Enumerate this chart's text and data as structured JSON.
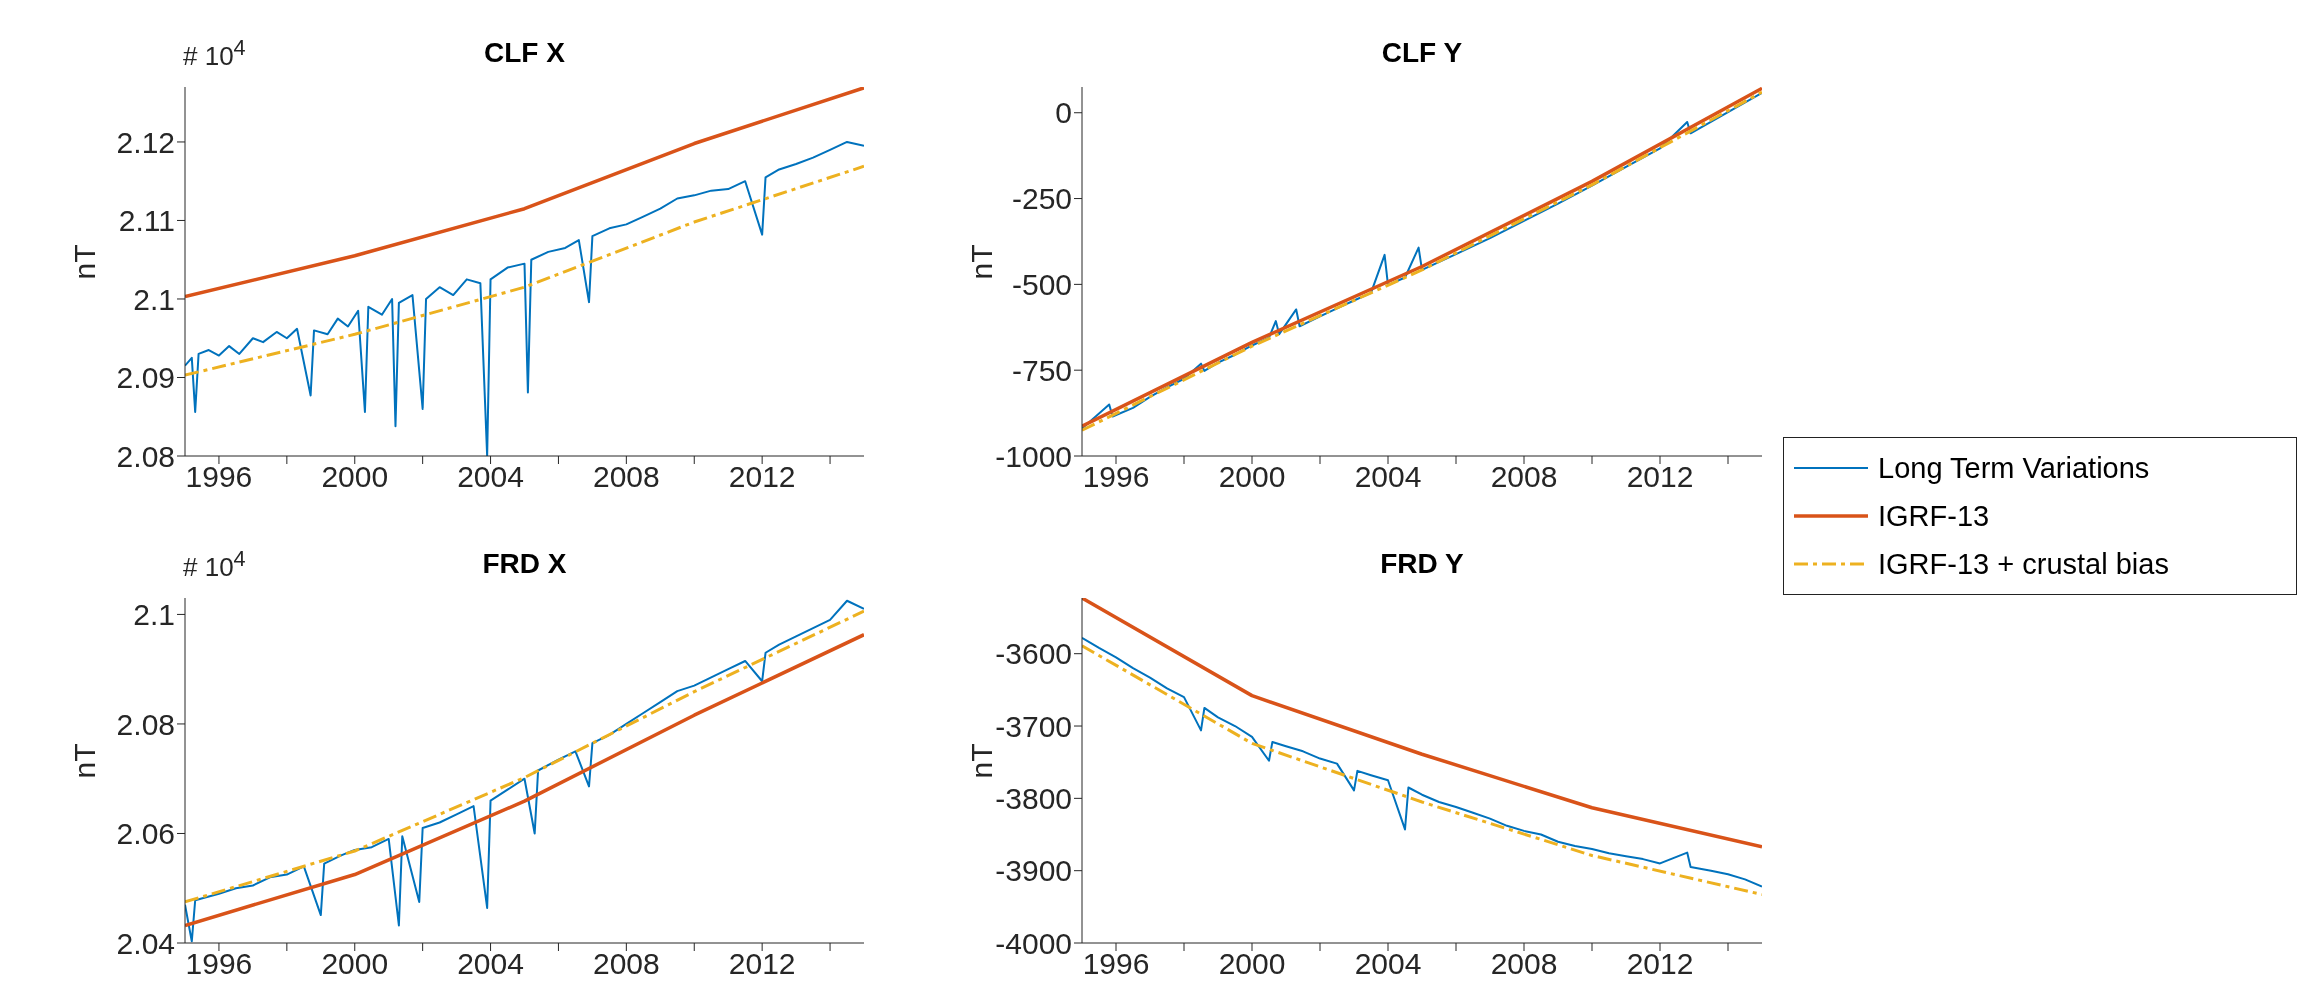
{
  "chart_data": [
    {
      "type": "line",
      "title": "CLF X",
      "ylabel": "nT",
      "annotations": [
        "# 10$^{4}$"
      ],
      "xlim": [
        1995,
        2015
      ],
      "xticks": [
        1996,
        {
          "value": 1998,
          "label": null
        },
        2000,
        {
          "value": 2002,
          "label": null
        },
        2004,
        {
          "value": 2006,
          "label": null
        },
        2008,
        {
          "value": 2010,
          "label": null
        },
        2012,
        {
          "value": 2014,
          "label": null
        }
      ],
      "ylim": [
        2.08,
        2.127
      ],
      "yticks": [
        2.08,
        2.09,
        2.1,
        2.11,
        2.12
      ],
      "marker": "none",
      "series": [
        {
          "color": "#0072bd",
          "line_style": "solid",
          "x": [
            1995.0,
            1995.2,
            1995.3,
            1995.4,
            1995.7,
            1996.0,
            1996.3,
            1996.6,
            1997.0,
            1997.3,
            1997.7,
            1998.0,
            1998.3,
            1998.7,
            1998.8,
            1999.2,
            1999.5,
            1999.8,
            2000.1,
            2000.3,
            2000.4,
            2000.8,
            2001.1,
            2001.2,
            2001.3,
            2001.7,
            2002.0,
            2002.1,
            2002.5,
            2002.9,
            2003.3,
            2003.7,
            2003.9,
            2004.0,
            2004.5,
            2005.0,
            2005.1,
            2005.2,
            2005.7,
            2006.2,
            2006.6,
            2006.9,
            2007.0,
            2007.5,
            2008.0,
            2008.5,
            2009.0,
            2009.5,
            2010.0,
            2010.5,
            2011.0,
            2011.5,
            2012.0,
            2012.1,
            2012.5,
            2013.0,
            2013.5,
            2014.0,
            2014.5,
            2015.0
          ],
          "values": [
            2.0915,
            2.0925,
            2.0856,
            2.093,
            2.0935,
            2.0928,
            2.094,
            2.093,
            2.095,
            2.0945,
            2.0958,
            2.095,
            2.0962,
            2.0877,
            2.096,
            2.0955,
            2.0975,
            2.0965,
            2.0985,
            2.0856,
            2.099,
            2.098,
            2.1,
            2.0838,
            2.0995,
            2.1005,
            2.086,
            2.1,
            2.1015,
            2.1005,
            2.1025,
            2.102,
            2.08,
            2.1025,
            2.104,
            2.1045,
            2.0881,
            2.105,
            2.106,
            2.1065,
            2.1075,
            2.0996,
            2.108,
            2.109,
            2.1095,
            2.1105,
            2.1115,
            2.1128,
            2.1132,
            2.1138,
            2.114,
            2.115,
            2.1082,
            2.1155,
            2.1165,
            2.1172,
            2.118,
            2.119,
            2.12,
            2.1195
          ]
        },
        {
          "color": "#d95319",
          "line_style": "solid",
          "x": [
            1995,
            2000,
            2005,
            2010,
            2015
          ],
          "values": [
            2.1003,
            2.1055,
            2.1115,
            2.1198,
            2.1269
          ]
        },
        {
          "color": "#edb120",
          "line_style": "dashed",
          "x": [
            1995,
            2000,
            2005,
            2010,
            2015
          ],
          "values": [
            2.0903,
            2.0955,
            2.1015,
            2.1098,
            2.1169
          ]
        }
      ]
    },
    {
      "type": "line",
      "title": "CLF Y",
      "ylabel": "nT",
      "xlim": [
        1995,
        2015
      ],
      "xticks": [
        1996,
        {
          "value": 1998,
          "label": null
        },
        2000,
        {
          "value": 2002,
          "label": null
        },
        2004,
        {
          "value": 2006,
          "label": null
        },
        2008,
        {
          "value": 2010,
          "label": null
        },
        2012,
        {
          "value": 2014,
          "label": null
        }
      ],
      "ylim": [
        -1000,
        75
      ],
      "yticks": [
        -1000,
        -750,
        -500,
        -250,
        0
      ],
      "marker": "none",
      "legend": "right",
      "series": [
        {
          "name": "Long Term Variations",
          "color": "#0072bd",
          "line_style": "solid",
          "x": [
            1995.0,
            1995.8,
            1995.9,
            1996.5,
            1997.0,
            1997.5,
            1998.0,
            1998.5,
            1998.6,
            1999.0,
            1999.5,
            2000.0,
            2000.5,
            2000.7,
            2000.8,
            2001.3,
            2001.4,
            2002.0,
            2002.5,
            2003.0,
            2003.5,
            2003.9,
            2004.0,
            2004.5,
            2004.9,
            2005.0,
            2006.0,
            2007.0,
            2008.0,
            2009.0,
            2010.0,
            2011.0,
            2012.0,
            2012.8,
            2012.9,
            2014.0,
            2015.0
          ],
          "values": [
            -920,
            -850,
            -885,
            -860,
            -828,
            -800,
            -775,
            -731,
            -752,
            -728,
            -705,
            -678,
            -655,
            -607,
            -645,
            -573,
            -622,
            -593,
            -570,
            -547,
            -525,
            -414,
            -502,
            -480,
            -393,
            -458,
            -412,
            -365,
            -315,
            -265,
            -212,
            -158,
            -104,
            -27,
            -60,
            2,
            58
          ]
        },
        {
          "name": "IGRF-13",
          "color": "#d95319",
          "line_style": "solid",
          "x": [
            1995,
            2000,
            2005,
            2010,
            2015
          ],
          "values": [
            -913,
            -669,
            -448,
            -200,
            71
          ]
        },
        {
          "name": "IGRF-13 + crustal bias",
          "color": "#edb120",
          "line_style": "dashed",
          "x": [
            1995,
            2000,
            2005,
            2010,
            2015
          ],
          "values": [
            -925,
            -680,
            -458,
            -210,
            60
          ]
        }
      ]
    },
    {
      "type": "line",
      "title": "FRD X",
      "ylabel": "nT",
      "annotations": [
        "# 10$^{4}$"
      ],
      "xlim": [
        1995,
        2015
      ],
      "xticks": [
        1996,
        {
          "value": 1998,
          "label": null
        },
        2000,
        {
          "value": 2002,
          "label": null
        },
        2004,
        {
          "value": 2006,
          "label": null
        },
        2008,
        {
          "value": 2010,
          "label": null
        },
        2012,
        {
          "value": 2014,
          "label": null
        }
      ],
      "ylim": [
        2.04,
        2.103
      ],
      "yticks": [
        2.04,
        2.06,
        2.08,
        2.1
      ],
      "marker": "none",
      "series": [
        {
          "color": "#0072bd",
          "line_style": "solid",
          "x": [
            1995.0,
            1995.2,
            1995.3,
            1996.0,
            1996.5,
            1997.0,
            1997.5,
            1998.0,
            1998.5,
            1999.0,
            1999.1,
            1999.6,
            2000.0,
            2000.5,
            2001.0,
            2001.3,
            2001.4,
            2001.9,
            2002.0,
            2002.5,
            2003.0,
            2003.5,
            2003.9,
            2004.0,
            2004.5,
            2005.0,
            2005.3,
            2005.4,
            2006.0,
            2006.5,
            2006.9,
            2007.0,
            2007.5,
            2008.0,
            2008.5,
            2009.0,
            2009.5,
            2010.0,
            2010.5,
            2011.0,
            2011.5,
            2012.0,
            2012.1,
            2012.5,
            2013.0,
            2013.5,
            2014.0,
            2014.5,
            2015.0
          ],
          "values": [
            2.047,
            2.0403,
            2.0478,
            2.049,
            2.05,
            2.0505,
            2.052,
            2.0525,
            2.054,
            2.0451,
            2.0545,
            2.056,
            2.057,
            2.0575,
            2.059,
            2.0432,
            2.0595,
            2.0475,
            2.061,
            2.062,
            2.0635,
            2.065,
            2.0464,
            2.066,
            2.068,
            2.07,
            2.06,
            2.0715,
            2.0735,
            2.075,
            2.0686,
            2.0765,
            2.078,
            2.08,
            2.082,
            2.084,
            2.086,
            2.087,
            2.0885,
            2.09,
            2.0915,
            2.0878,
            2.093,
            2.0945,
            2.096,
            2.0975,
            2.099,
            2.1025,
            2.101
          ]
        },
        {
          "color": "#d95319",
          "line_style": "solid",
          "x": [
            1995,
            2000,
            2005,
            2010,
            2015
          ],
          "values": [
            2.0432,
            2.0525,
            2.0659,
            2.0816,
            2.0963
          ]
        },
        {
          "color": "#edb120",
          "line_style": "dashed",
          "x": [
            1995,
            2000,
            2005,
            2010,
            2015
          ],
          "values": [
            2.0475,
            2.0568,
            2.0702,
            2.0859,
            2.1006
          ]
        }
      ]
    },
    {
      "type": "line",
      "title": "FRD Y",
      "ylabel": "nT",
      "xlim": [
        1995,
        2015
      ],
      "xticks": [
        1996,
        {
          "value": 1998,
          "label": null
        },
        2000,
        {
          "value": 2002,
          "label": null
        },
        2004,
        {
          "value": 2006,
          "label": null
        },
        2008,
        {
          "value": 2010,
          "label": null
        },
        2012,
        {
          "value": 2014,
          "label": null
        }
      ],
      "ylim": [
        -4000,
        -3523
      ],
      "yticks": [
        -4000,
        -3900,
        -3800,
        -3700,
        -3600
      ],
      "marker": "none",
      "series": [
        {
          "color": "#0072bd",
          "line_style": "solid",
          "x": [
            1995.0,
            1995.5,
            1996.0,
            1996.5,
            1997.0,
            1997.5,
            1998.0,
            1998.5,
            1998.6,
            1999.0,
            1999.5,
            2000.0,
            2000.5,
            2000.6,
            2001.0,
            2001.5,
            2002.0,
            2002.5,
            2003.0,
            2003.1,
            2003.5,
            2004.0,
            2004.5,
            2004.6,
            2005.0,
            2005.5,
            2006.0,
            2006.5,
            2007.0,
            2007.5,
            2008.0,
            2008.5,
            2009.0,
            2009.5,
            2010.0,
            2010.5,
            2011.0,
            2011.5,
            2012.0,
            2012.8,
            2012.9,
            2013.5,
            2014.0,
            2014.5,
            2015.0
          ],
          "values": [
            -3578,
            -3592,
            -3605,
            -3620,
            -3633,
            -3648,
            -3660,
            -3706,
            -3675,
            -3688,
            -3700,
            -3715,
            -3748,
            -3722,
            -3728,
            -3735,
            -3745,
            -3752,
            -3789,
            -3762,
            -3768,
            -3775,
            -3843,
            -3785,
            -3795,
            -3805,
            -3812,
            -3820,
            -3828,
            -3838,
            -3845,
            -3850,
            -3860,
            -3866,
            -3870,
            -3876,
            -3880,
            -3884,
            -3890,
            -3875,
            -3895,
            -3900,
            -3905,
            -3912,
            -3922
          ]
        },
        {
          "color": "#d95319",
          "line_style": "solid",
          "x": [
            1995,
            2000,
            2005,
            2010,
            2015
          ],
          "values": [
            -3523,
            -3658,
            -3739,
            -3813,
            -3867
          ]
        },
        {
          "color": "#edb120",
          "line_style": "dashed",
          "x": [
            1995,
            2000,
            2005,
            2010,
            2015
          ],
          "values": [
            -3589,
            -3724,
            -3805,
            -3879,
            -3933
          ]
        }
      ]
    }
  ]
}
